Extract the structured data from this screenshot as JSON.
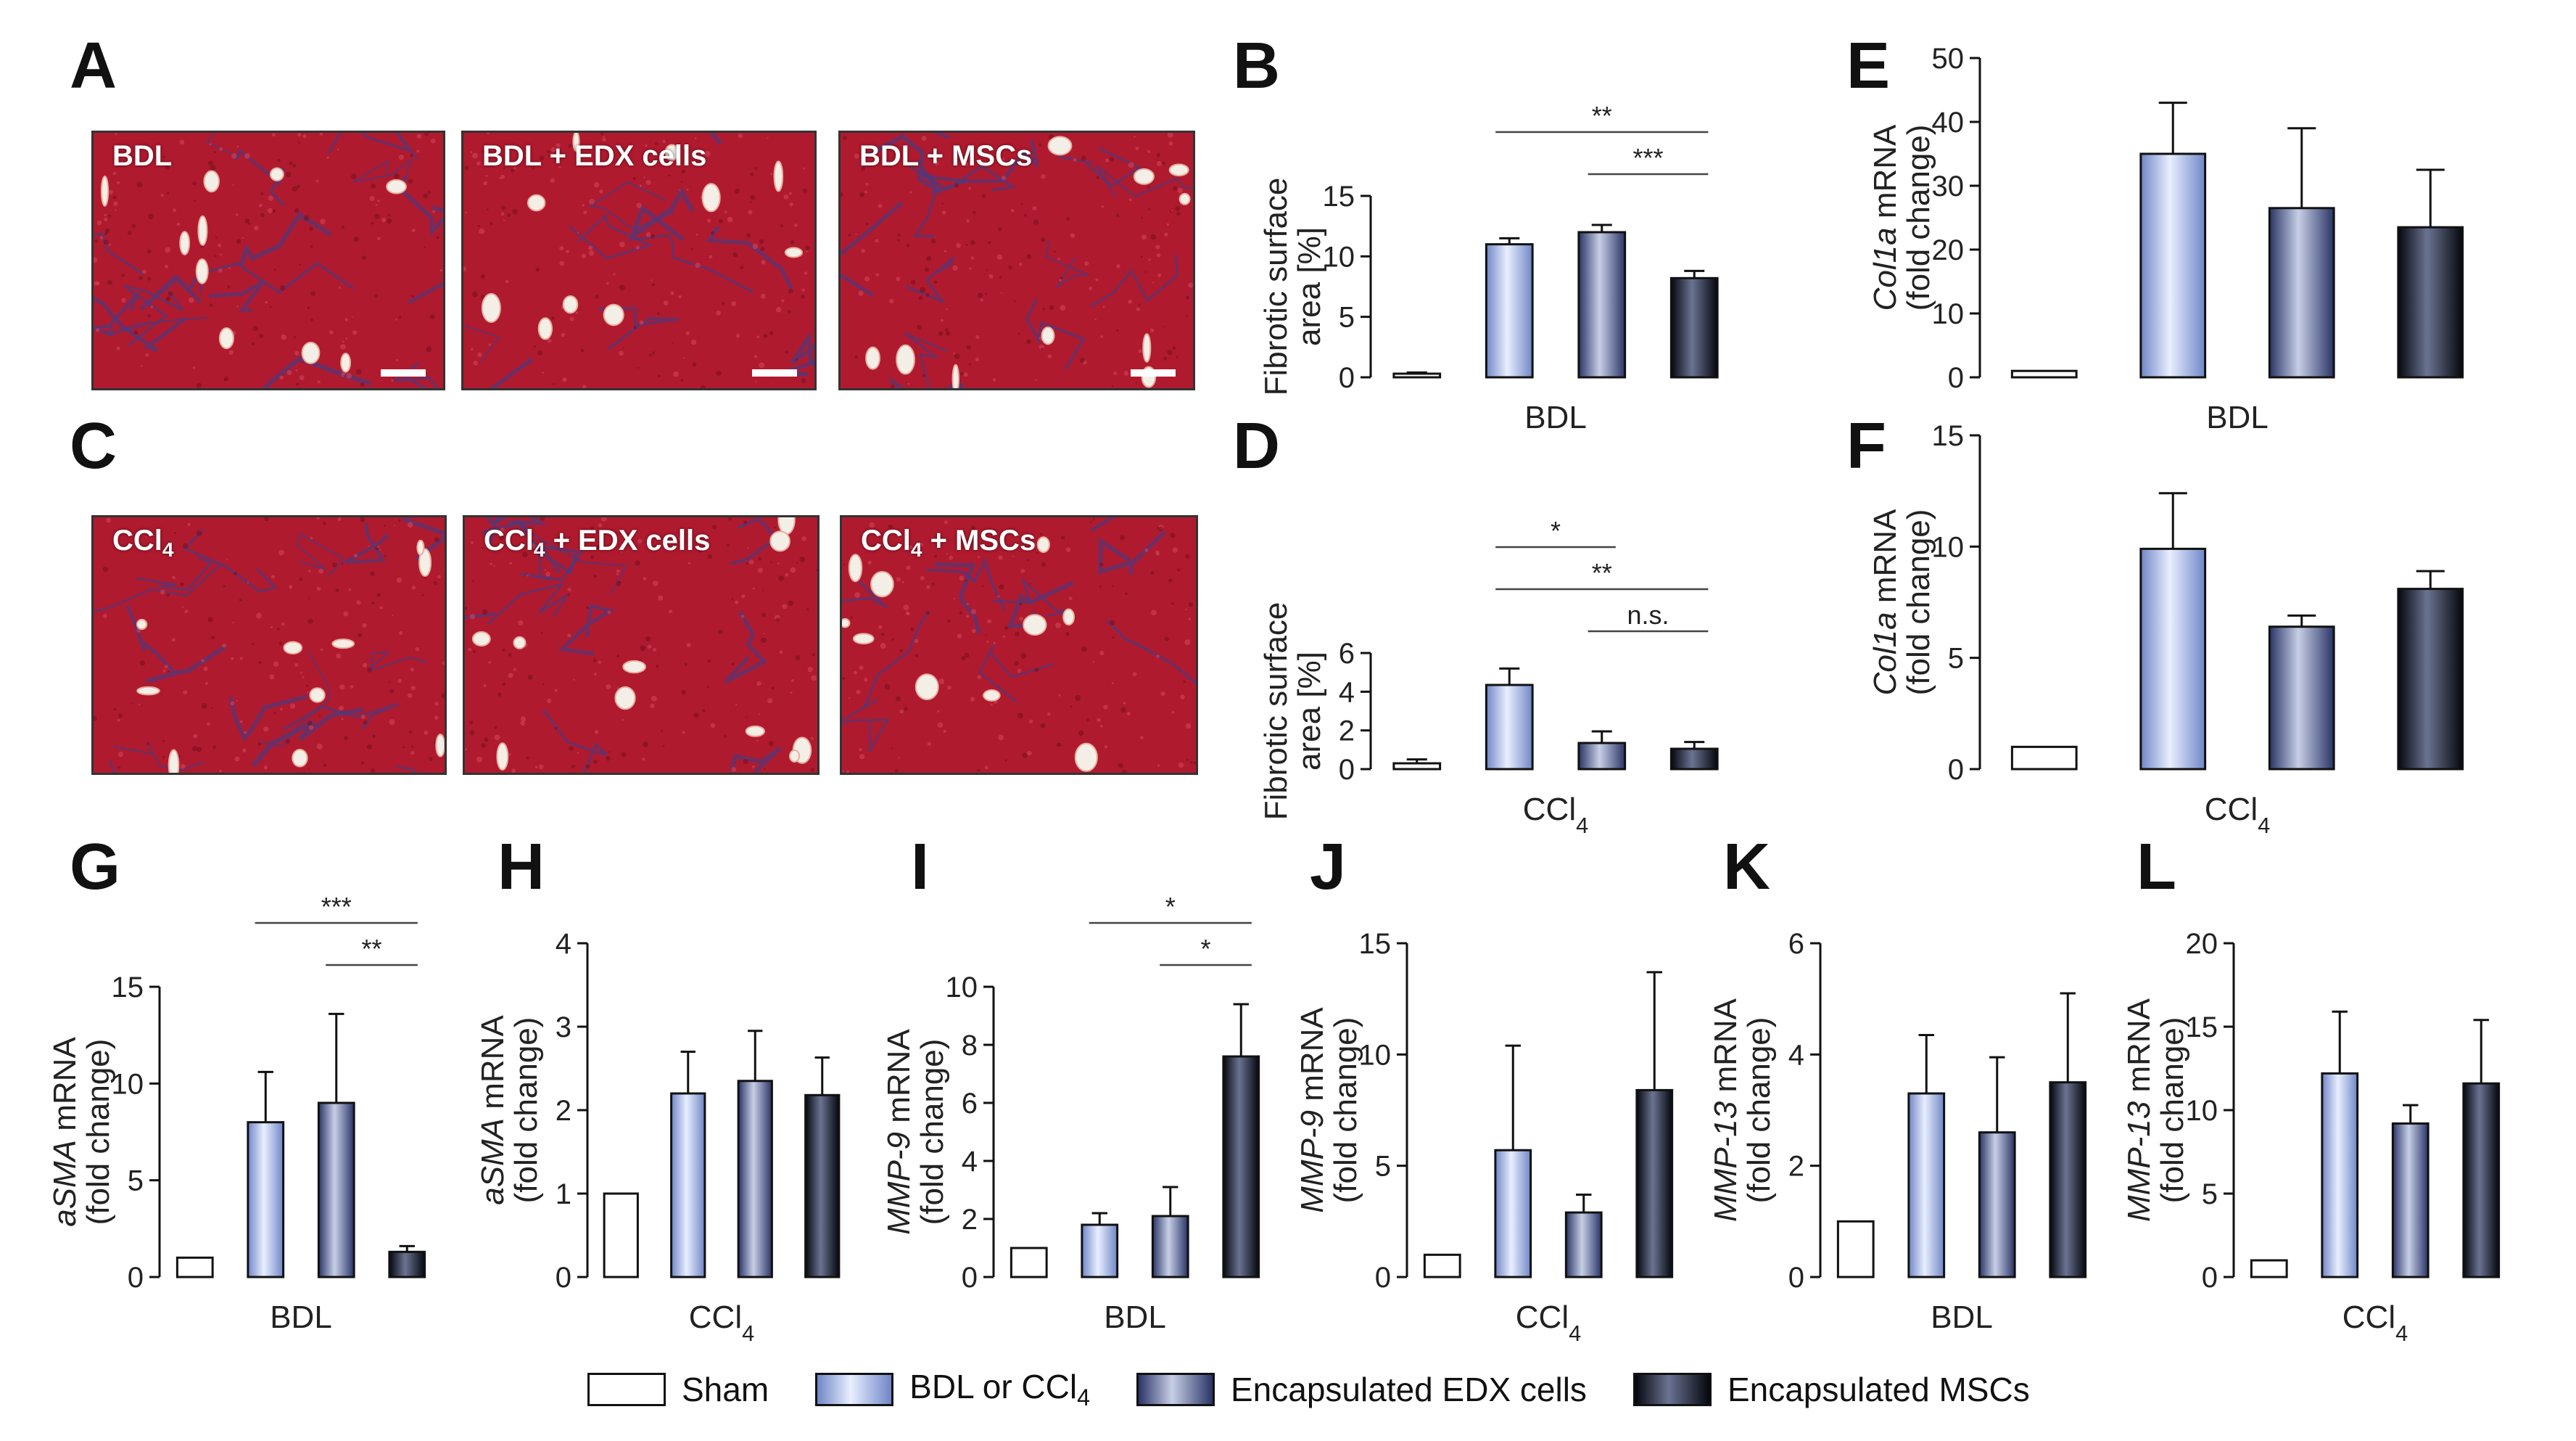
{
  "panel_labels": [
    "A",
    "B",
    "C",
    "D",
    "E",
    "F",
    "G",
    "H",
    "I",
    "J",
    "K",
    "L"
  ],
  "micrographs": {
    "A": [
      "BDL",
      "BDL + EDX cells",
      "BDL + MSCs"
    ],
    "C": [
      "CCl4",
      "CCl4 + EDX cells",
      "CCl4 + MSCs"
    ]
  },
  "colors": {
    "sham": "#ffffff",
    "bdl_or_ccl4": "#a9bde9",
    "edx": "#5f6da5",
    "msc": "#1c2236",
    "tissue": "#b01a2e",
    "fibrosis": "#3b3f8f"
  },
  "legend": {
    "items": [
      {
        "label": "Sham",
        "series": "sham"
      },
      {
        "label": "BDL or CCl4",
        "series": "bdl_or_ccl4"
      },
      {
        "label": "Encapsulated EDX cells",
        "series": "edx"
      },
      {
        "label": "Encapsulated MSCs",
        "series": "msc"
      }
    ]
  },
  "chart_data": [
    {
      "panel": "B",
      "type": "bar",
      "title": "",
      "xlabel": "BDL",
      "ylabel_lines": [
        "Fibrotic surface",
        "area [%]"
      ],
      "ylim": [
        0,
        15
      ],
      "yticks": [
        0,
        5,
        10,
        15
      ],
      "series": [
        "Sham",
        "BDL or CCl4",
        "Encapsulated EDX cells",
        "Encapsulated MSCs"
      ],
      "values": [
        0.3,
        11.0,
        12.0,
        8.2
      ],
      "errors": [
        0.1,
        0.5,
        0.6,
        0.6
      ],
      "significance": [
        {
          "from": 1,
          "to": 3,
          "label": "**"
        },
        {
          "from": 2,
          "to": 3,
          "label": "***"
        }
      ]
    },
    {
      "panel": "E",
      "type": "bar",
      "title": "",
      "xlabel": "BDL",
      "ylabel_lines": [
        "Col1a mRNA",
        "(fold change)"
      ],
      "ylim": [
        0,
        50
      ],
      "yticks": [
        0,
        10,
        20,
        30,
        40,
        50
      ],
      "series": [
        "Sham",
        "BDL or CCl4",
        "Encapsulated EDX cells",
        "Encapsulated MSCs"
      ],
      "values": [
        1.0,
        35.0,
        26.5,
        23.5
      ],
      "errors": [
        0,
        8.0,
        12.5,
        9.0
      ],
      "significance": []
    },
    {
      "panel": "D",
      "type": "bar",
      "title": "",
      "xlabel": "CCl4",
      "ylabel_lines": [
        "Fibrotic surface",
        "area [%]"
      ],
      "ylim": [
        0,
        6
      ],
      "yticks": [
        0,
        2,
        4,
        6
      ],
      "series": [
        "Sham",
        "BDL or CCl4",
        "Encapsulated EDX cells",
        "Encapsulated MSCs"
      ],
      "values": [
        0.3,
        4.35,
        1.35,
        1.05
      ],
      "errors": [
        0.2,
        0.85,
        0.6,
        0.35
      ],
      "significance": [
        {
          "from": 1,
          "to": 2,
          "label": "*"
        },
        {
          "from": 1,
          "to": 3,
          "label": "**"
        },
        {
          "from": 2,
          "to": 3,
          "label": "n.s."
        }
      ]
    },
    {
      "panel": "F",
      "type": "bar",
      "title": "",
      "xlabel": "CCl4",
      "ylabel_lines": [
        "Col1a mRNA",
        "(fold change)"
      ],
      "ylim": [
        0,
        15
      ],
      "yticks": [
        0,
        5,
        10,
        15
      ],
      "series": [
        "Sham",
        "BDL or CCl4",
        "Encapsulated EDX cells",
        "Encapsulated MSCs"
      ],
      "values": [
        1.0,
        9.9,
        6.4,
        8.1
      ],
      "errors": [
        0,
        2.5,
        0.5,
        0.8
      ],
      "significance": []
    },
    {
      "panel": "G",
      "type": "bar",
      "title": "",
      "xlabel": "BDL",
      "ylabel_lines": [
        "aSMA mRNA",
        "(fold change)"
      ],
      "ylim": [
        0,
        15
      ],
      "yticks": [
        0,
        5,
        10,
        15
      ],
      "series": [
        "Sham",
        "BDL or CCl4",
        "Encapsulated EDX cells",
        "Encapsulated MSCs"
      ],
      "values": [
        1.0,
        8.0,
        9.0,
        1.3
      ],
      "errors": [
        0,
        2.6,
        4.6,
        0.3
      ],
      "significance": [
        {
          "from": 1,
          "to": 3,
          "label": "***"
        },
        {
          "from": 2,
          "to": 3,
          "label": "**"
        }
      ]
    },
    {
      "panel": "H",
      "type": "bar",
      "title": "",
      "xlabel": "CCl4",
      "ylabel_lines": [
        "aSMA mRNA",
        "(fold change)"
      ],
      "ylim": [
        0,
        4
      ],
      "yticks": [
        0,
        1,
        2,
        3,
        4
      ],
      "series": [
        "Sham",
        "BDL or CCl4",
        "Encapsulated EDX cells",
        "Encapsulated MSCs"
      ],
      "values": [
        1.0,
        2.2,
        2.35,
        2.18
      ],
      "errors": [
        0,
        0.5,
        0.6,
        0.45
      ],
      "significance": []
    },
    {
      "panel": "I",
      "type": "bar",
      "title": "",
      "xlabel": "BDL",
      "ylabel_lines": [
        "MMP-9 mRNA",
        "(fold change)"
      ],
      "ylim": [
        0,
        10
      ],
      "yticks": [
        0,
        2,
        4,
        6,
        8,
        10
      ],
      "series": [
        "Sham",
        "BDL or CCl4",
        "Encapsulated EDX cells",
        "Encapsulated MSCs"
      ],
      "values": [
        1.0,
        1.8,
        2.1,
        7.6
      ],
      "errors": [
        0,
        0.4,
        1.0,
        1.8
      ],
      "significance": [
        {
          "from": 1,
          "to": 3,
          "label": "*"
        },
        {
          "from": 2,
          "to": 3,
          "label": "*"
        }
      ]
    },
    {
      "panel": "J",
      "type": "bar",
      "title": "",
      "xlabel": "CCl4",
      "ylabel_lines": [
        "MMP-9 mRNA",
        "(fold change)"
      ],
      "ylim": [
        0,
        15
      ],
      "yticks": [
        0,
        5,
        10,
        15
      ],
      "series": [
        "Sham",
        "BDL or CCl4",
        "Encapsulated EDX cells",
        "Encapsulated MSCs"
      ],
      "values": [
        1.0,
        5.7,
        2.9,
        8.4
      ],
      "errors": [
        0,
        4.7,
        0.8,
        5.3
      ],
      "significance": []
    },
    {
      "panel": "K",
      "type": "bar",
      "title": "",
      "xlabel": "BDL",
      "ylabel_lines": [
        "MMP-13 mRNA",
        "(fold change)"
      ],
      "ylim": [
        0,
        6
      ],
      "yticks": [
        0,
        2,
        4,
        6
      ],
      "series": [
        "Sham",
        "BDL or CCl4",
        "Encapsulated EDX cells",
        "Encapsulated MSCs"
      ],
      "values": [
        1.0,
        3.3,
        2.6,
        3.5
      ],
      "errors": [
        0,
        1.05,
        1.35,
        1.6
      ],
      "significance": []
    },
    {
      "panel": "L",
      "type": "bar",
      "title": "",
      "xlabel": "CCl4",
      "ylabel_lines": [
        "MMP-13 mRNA",
        "(fold change)"
      ],
      "ylim": [
        0,
        20
      ],
      "yticks": [
        0,
        5,
        10,
        15,
        20
      ],
      "series": [
        "Sham",
        "BDL or CCl4",
        "Encapsulated EDX cells",
        "Encapsulated MSCs"
      ],
      "values": [
        1.0,
        12.2,
        9.2,
        11.6
      ],
      "errors": [
        0,
        3.7,
        1.1,
        3.8
      ],
      "significance": []
    }
  ]
}
